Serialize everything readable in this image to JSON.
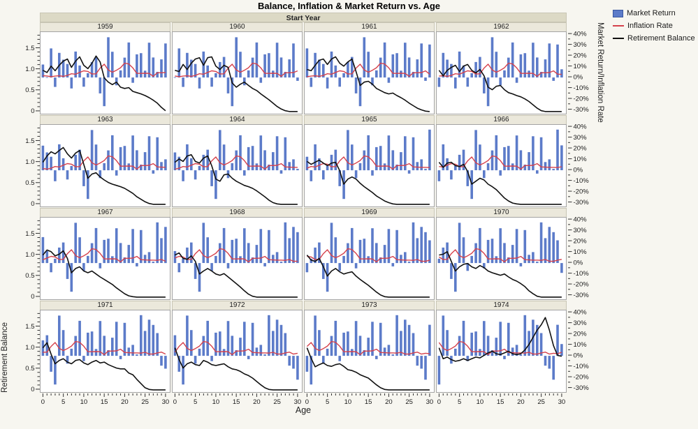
{
  "page": {
    "title": "Balance, Inflation & Market Return vs. Age",
    "facet_label": "Start Year",
    "x_label": "Age",
    "left_axis_label": "Retirement Balance",
    "right_axis_label": "Market Return/Inflation Rate"
  },
  "legend": {
    "items": [
      {
        "label": "Market Return",
        "swatch": "bar",
        "color": "#5C7BC9"
      },
      {
        "label": "Inflation Rate",
        "swatch": "line",
        "color": "#D5414C"
      },
      {
        "label": "Retirement Balance",
        "swatch": "line",
        "color": "#111111"
      }
    ]
  },
  "colors": {
    "page_bg": "#F7F6F0",
    "facet_strip_bg": "#DCD9C5",
    "panel_header_bg": "#EBE8DB",
    "plot_bg": "#FFFFFF",
    "panel_border": "#A3A3A3",
    "bar": "#5C7BC9",
    "bar_border": "#3A57A0",
    "inflation_line": "#D5414C",
    "balance_line": "#111111",
    "tick": "#333333",
    "text": "#1A1A1A"
  },
  "axes": {
    "x": {
      "label": "Age",
      "ticks": [
        0,
        5,
        10,
        15,
        20,
        25,
        30
      ],
      "minor_step": 1,
      "min": 0,
      "max": 30
    },
    "left": {
      "label": "Retirement Balance",
      "tick_labels": [
        "0",
        "0.5",
        "1.0",
        "1.5"
      ],
      "tick_values": [
        0,
        0.5,
        1.0,
        1.5
      ],
      "minor_step": 0.1
    },
    "right": {
      "label": "Market Return/Inflation Rate",
      "tick_labels": [
        "40%",
        "30%",
        "20%",
        "10%",
        "0%",
        "-10%",
        "-20%",
        "-30%"
      ],
      "tick_values": [
        40,
        30,
        20,
        10,
        0,
        -10,
        -20,
        -30
      ],
      "minor_step": 5,
      "range": [
        -33.5,
        42
      ]
    }
  },
  "chart_data": {
    "type": "bar",
    "description": "4x4 trellis by Start Year: blue bars = annual market return %, red line = inflation rate %, black line = retirement balance (left scale, starts at 1.0).",
    "facet_variable": "Start Year",
    "base_year": 1959,
    "x": "Age 0-30 (years since start year)",
    "market_return_pct": [
      12.0,
      0.3,
      26.9,
      -8.7,
      22.8,
      16.5,
      12.5,
      -10.1,
      24.0,
      11.1,
      -8.5,
      4.0,
      14.3,
      19.0,
      -14.7,
      -26.5,
      37.2,
      23.8,
      -7.2,
      6.6,
      18.4,
      32.4,
      -4.9,
      21.4,
      22.5,
      6.3,
      32.2,
      18.5,
      5.2,
      16.8,
      31.5,
      -3.1,
      30.5,
      7.6,
      10.1,
      1.3,
      37.6,
      23.0,
      33.4,
      28.6,
      21.0,
      -9.1,
      -11.9,
      -22.1,
      28.7,
      10.9
    ],
    "inflation_rate_pct": [
      1.7,
      1.4,
      0.7,
      1.3,
      1.6,
      1.0,
      1.9,
      3.5,
      3.0,
      4.7,
      6.2,
      5.6,
      3.3,
      3.4,
      8.7,
      12.3,
      6.9,
      4.9,
      6.7,
      9.0,
      13.3,
      12.5,
      8.9,
      3.8,
      3.8,
      3.9,
      3.8,
      1.1,
      4.4,
      4.4,
      4.6,
      6.1,
      3.1,
      2.9,
      2.7,
      2.7,
      2.5,
      3.3,
      1.7,
      1.6,
      2.7,
      3.4,
      1.6,
      2.4,
      1.9,
      3.3
    ],
    "panels": [
      {
        "start_year": 1959,
        "balance": [
          0.98,
          0.93,
          1.08,
          0.97,
          1.1,
          1.2,
          1.25,
          1.05,
          1.2,
          1.3,
          1.1,
          1.02,
          1.15,
          1.32,
          1.18,
          0.8,
          0.7,
          0.64,
          0.7,
          0.58,
          0.55,
          0.57,
          0.48,
          0.45,
          0.42,
          0.38,
          0.33,
          0.27,
          0.2,
          0.1,
          0.02
        ]
      },
      {
        "start_year": 1960,
        "balance": [
          0.98,
          0.95,
          1.12,
          1.0,
          1.15,
          1.25,
          1.28,
          1.1,
          1.28,
          1.3,
          1.08,
          1.0,
          1.1,
          1.05,
          0.68,
          0.58,
          0.65,
          0.7,
          0.62,
          0.55,
          0.5,
          0.42,
          0.35,
          0.28,
          0.2,
          0.12,
          0.06,
          0.02,
          0.0,
          0.0,
          0.0
        ]
      },
      {
        "start_year": 1961,
        "balance": [
          1.0,
          0.97,
          1.1,
          1.22,
          1.25,
          1.12,
          1.25,
          1.3,
          1.15,
          1.08,
          1.18,
          1.25,
          0.95,
          0.62,
          0.7,
          0.72,
          0.65,
          0.55,
          0.5,
          0.45,
          0.42,
          0.44,
          0.38,
          0.33,
          0.27,
          0.2,
          0.14,
          0.08,
          0.04,
          0.01,
          0.0
        ]
      },
      {
        "start_year": 1962,
        "balance": [
          0.98,
          0.85,
          0.98,
          1.05,
          1.1,
          0.95,
          1.08,
          1.12,
          0.98,
          0.92,
          1.0,
          0.85,
          0.58,
          0.52,
          0.6,
          0.62,
          0.52,
          0.45,
          0.42,
          0.38,
          0.35,
          0.3,
          0.24,
          0.16,
          0.08,
          0.02,
          0.0,
          0.0,
          0.0,
          0.0,
          0.0
        ]
      },
      {
        "start_year": 1963,
        "balance": [
          1.0,
          1.15,
          1.25,
          1.2,
          1.28,
          1.35,
          1.2,
          1.1,
          1.22,
          1.28,
          0.95,
          0.62,
          0.72,
          0.75,
          0.65,
          0.58,
          0.52,
          0.48,
          0.45,
          0.42,
          0.38,
          0.32,
          0.26,
          0.18,
          0.12,
          0.06,
          0.02,
          0.0,
          0.0,
          0.0,
          0.0
        ]
      },
      {
        "start_year": 1964,
        "balance": [
          1.0,
          1.08,
          1.02,
          1.15,
          1.18,
          1.02,
          0.98,
          1.1,
          1.15,
          0.92,
          0.6,
          0.55,
          0.7,
          0.72,
          0.62,
          0.55,
          0.5,
          0.45,
          0.42,
          0.38,
          0.32,
          0.25,
          0.18,
          0.1,
          0.04,
          0.01,
          0.0,
          0.0,
          0.0,
          0.0,
          0.0
        ]
      },
      {
        "start_year": 1965,
        "balance": [
          1.02,
          0.95,
          1.0,
          1.05,
          0.98,
          0.92,
          0.98,
          1.0,
          0.8,
          0.48,
          0.6,
          0.65,
          0.6,
          0.5,
          0.42,
          0.35,
          0.28,
          0.2,
          0.14,
          0.08,
          0.04,
          0.01,
          0.0,
          0.0,
          0.0,
          0.0,
          0.0,
          0.0,
          0.0,
          0.0,
          0.0
        ]
      },
      {
        "start_year": 1966,
        "balance": [
          1.0,
          0.88,
          0.98,
          1.0,
          0.92,
          0.9,
          0.95,
          0.78,
          0.48,
          0.55,
          0.62,
          0.58,
          0.48,
          0.42,
          0.35,
          0.25,
          0.15,
          0.08,
          0.03,
          0.01,
          0.0,
          0.0,
          0.0,
          0.0,
          0.0,
          0.0,
          0.0,
          0.0,
          0.0,
          0.0,
          0.0
        ]
      },
      {
        "start_year": 1967,
        "balance": [
          1.0,
          1.12,
          1.08,
          0.98,
          1.02,
          1.1,
          0.92,
          0.58,
          0.68,
          0.72,
          0.62,
          0.58,
          0.62,
          0.55,
          0.48,
          0.42,
          0.36,
          0.3,
          0.22,
          0.15,
          0.08,
          0.03,
          0.01,
          0.0,
          0.0,
          0.0,
          0.0,
          0.0,
          0.0,
          0.0,
          0.0
        ]
      },
      {
        "start_year": 1968,
        "balance": [
          1.0,
          1.05,
          0.92,
          0.9,
          0.98,
          0.85,
          0.55,
          0.62,
          0.68,
          0.62,
          0.55,
          0.52,
          0.56,
          0.48,
          0.4,
          0.32,
          0.24,
          0.15,
          0.07,
          0.02,
          0.0,
          0.0,
          0.0,
          0.0,
          0.0,
          0.0,
          0.0,
          0.0,
          0.0,
          0.0,
          0.0
        ]
      },
      {
        "start_year": 1969,
        "balance": [
          1.0,
          0.88,
          0.85,
          0.92,
          0.72,
          0.5,
          0.62,
          0.68,
          0.6,
          0.55,
          0.58,
          0.6,
          0.5,
          0.42,
          0.35,
          0.28,
          0.2,
          0.12,
          0.05,
          0.01,
          0.0,
          0.0,
          0.0,
          0.0,
          0.0,
          0.0,
          0.0,
          0.0,
          0.0,
          0.0,
          0.0
        ]
      },
      {
        "start_year": 1970,
        "balance": [
          1.0,
          1.02,
          1.08,
          0.85,
          0.62,
          0.72,
          0.78,
          0.8,
          0.72,
          0.68,
          0.75,
          0.7,
          0.62,
          0.58,
          0.55,
          0.52,
          0.55,
          0.48,
          0.42,
          0.38,
          0.32,
          0.25,
          0.15,
          0.08,
          0.02,
          0.0,
          0.0,
          0.0,
          0.0,
          0.0,
          0.0
        ]
      },
      {
        "start_year": 1971,
        "balance": [
          1.0,
          1.12,
          0.85,
          0.62,
          0.7,
          0.74,
          0.66,
          0.62,
          0.7,
          0.72,
          0.64,
          0.6,
          0.66,
          0.7,
          0.64,
          0.66,
          0.6,
          0.56,
          0.52,
          0.5,
          0.5,
          0.4,
          0.36,
          0.25,
          0.15,
          0.05,
          0.01,
          0.0,
          0.0,
          0.0,
          0.0
        ]
      },
      {
        "start_year": 1972,
        "balance": [
          1.0,
          0.72,
          0.52,
          0.62,
          0.66,
          0.6,
          0.58,
          0.7,
          0.66,
          0.6,
          0.58,
          0.6,
          0.62,
          0.55,
          0.5,
          0.48,
          0.44,
          0.38,
          0.34,
          0.28,
          0.2,
          0.12,
          0.05,
          0.01,
          0.0,
          0.0,
          0.0,
          0.0,
          0.0,
          0.0,
          0.0
        ]
      },
      {
        "start_year": 1973,
        "balance": [
          1.0,
          0.75,
          0.55,
          0.6,
          0.64,
          0.58,
          0.56,
          0.6,
          0.62,
          0.56,
          0.48,
          0.46,
          0.42,
          0.36,
          0.32,
          0.28,
          0.2,
          0.12,
          0.05,
          0.01,
          0.0,
          0.0,
          0.0,
          0.0,
          0.0,
          0.0,
          0.0,
          0.0,
          0.0,
          0.0,
          0.0
        ]
      },
      {
        "start_year": 1974,
        "balance": [
          1.0,
          0.74,
          0.78,
          0.72,
          0.68,
          0.7,
          0.74,
          0.7,
          0.74,
          0.78,
          0.76,
          0.82,
          0.88,
          0.92,
          0.86,
          0.84,
          0.88,
          0.92,
          0.86,
          0.84,
          0.86,
          0.95,
          1.08,
          1.25,
          1.42,
          1.55,
          1.72,
          1.42,
          1.05,
          0.82,
          0.8
        ]
      }
    ],
    "layout": {
      "rows": 4,
      "cols": 4,
      "left_ylim": [
        0,
        1.89
      ],
      "right_ylim_pct": [
        -33.5,
        42
      ],
      "xlim": [
        0,
        30
      ],
      "balance_zero_pct_equiv": -31.5
    }
  }
}
